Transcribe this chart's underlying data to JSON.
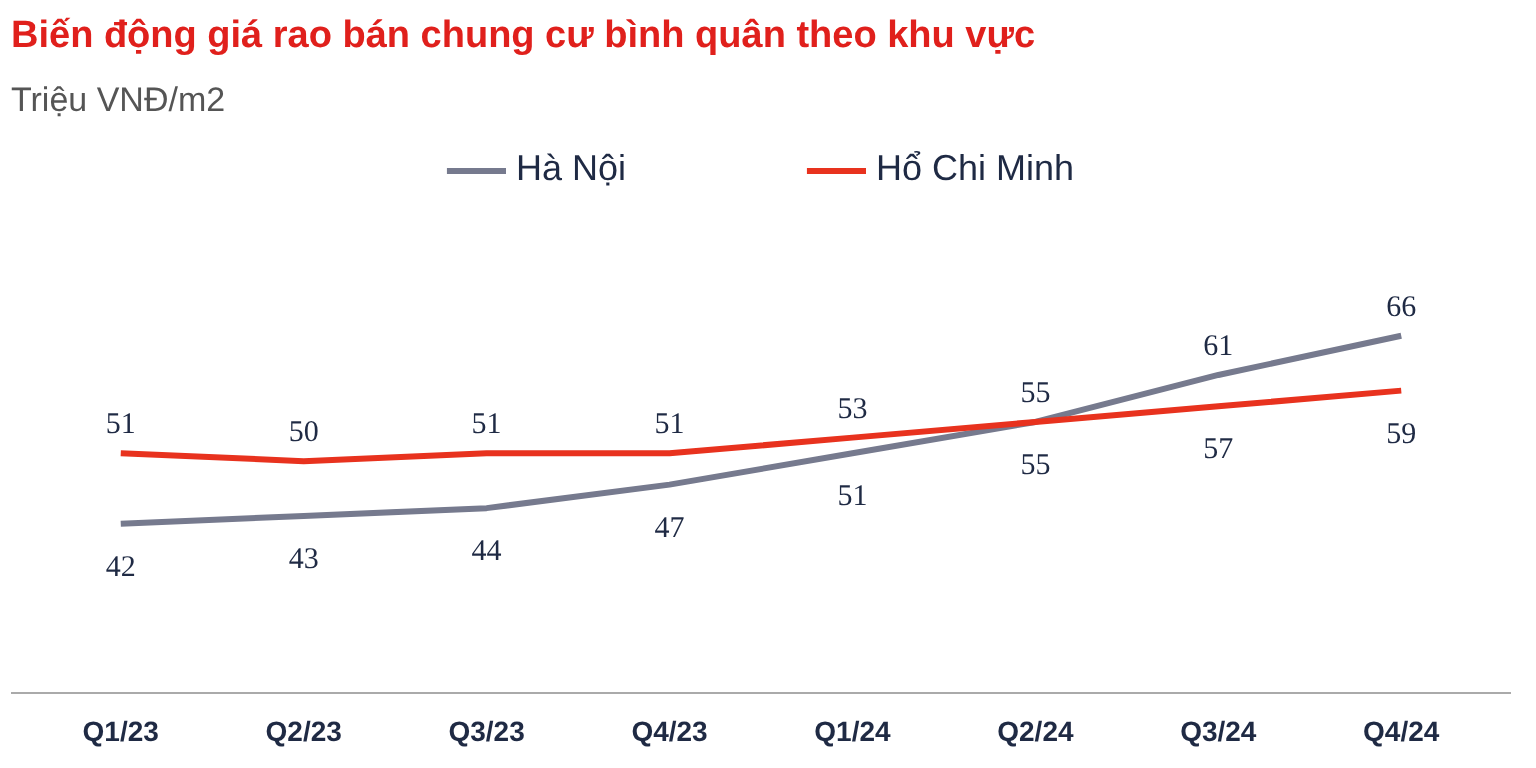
{
  "chart_data": {
    "type": "line",
    "title": "Biến động giá rao bán chung cư bình quân theo khu vực",
    "subtitle": "Triệu VNĐ/m2",
    "categories": [
      "Q1/23",
      "Q2/23",
      "Q3/23",
      "Q4/23",
      "Q1/24",
      "Q2/24",
      "Q3/24",
      "Q4/24"
    ],
    "series": [
      {
        "name": "Hà Nội",
        "color": "#767a8e",
        "values": [
          42,
          43,
          44,
          47,
          51,
          55,
          61,
          66
        ]
      },
      {
        "name": "Hổ Chi Minh",
        "color": "#e8321e",
        "values": [
          51,
          50,
          51,
          51,
          53,
          55,
          57,
          59
        ]
      }
    ],
    "data_labels": true,
    "legend": "top",
    "grid": false,
    "marker": "none",
    "line_style": "solid"
  }
}
